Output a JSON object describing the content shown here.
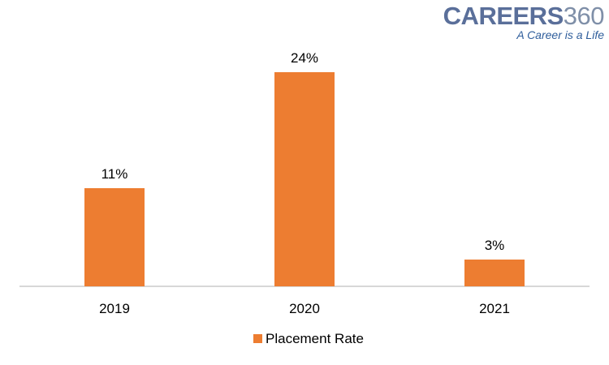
{
  "logo": {
    "brand_main": "CAREERS",
    "brand_num": "360",
    "tagline": "A Career is a Life"
  },
  "chart_data": {
    "type": "bar",
    "categories": [
      "2019",
      "2020",
      "2021"
    ],
    "series": [
      {
        "name": "Placement Rate",
        "values": [
          11,
          24,
          3
        ],
        "labels": [
          "11%",
          "24%",
          "3%"
        ]
      }
    ],
    "ylim": [
      0,
      24
    ],
    "grid": false,
    "legend": "bottom-center",
    "colors": {
      "bar": "#ed7d31",
      "axis": "#bfbfbf"
    }
  }
}
